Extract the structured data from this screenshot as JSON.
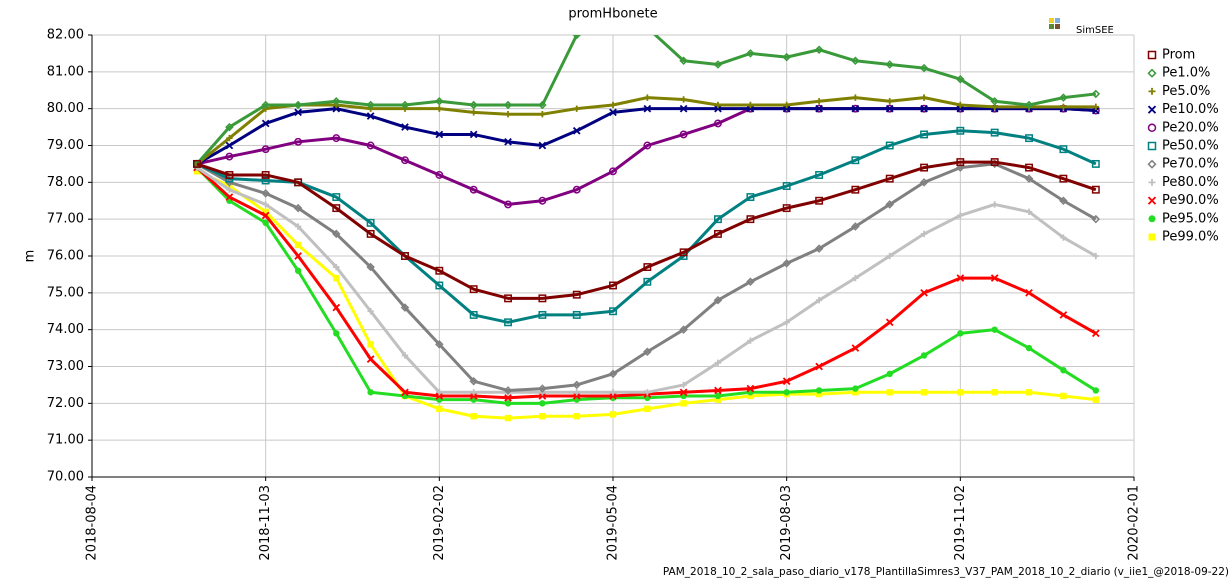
{
  "chart_data": {
    "type": "line",
    "title": "promHbonete",
    "y_label": "m",
    "logo_text": "SimSEE",
    "footer": "PAM_2018_10_2_sala_paso_diario_v178_PlantillaSimres3_V37_PAM_2018_10_2_diario (v_iie1_@2018-09-22)",
    "grid": true,
    "legend": "right",
    "xlim": [
      "2018-08-04",
      "2020-02-01"
    ],
    "xticks": [
      "2018-08-04",
      "2018-11-03",
      "2019-02-02",
      "2019-05-04",
      "2019-08-03",
      "2019-11-02",
      "2020-02-01"
    ],
    "ylim": [
      70,
      82
    ],
    "yticks": [
      {
        "value": 70,
        "label": "70.00"
      },
      {
        "value": 71,
        "label": "71.00"
      },
      {
        "value": 72,
        "label": "72.00"
      },
      {
        "value": 73,
        "label": "73.00"
      },
      {
        "value": 74,
        "label": "74.00"
      },
      {
        "value": 75,
        "label": "75.00"
      },
      {
        "value": 76,
        "label": "76.00"
      },
      {
        "value": 77,
        "label": "77.00"
      },
      {
        "value": 78,
        "label": "78.00"
      },
      {
        "value": 79,
        "label": "79.00"
      },
      {
        "value": 80,
        "label": "80.00"
      },
      {
        "value": 81,
        "label": "81.00"
      },
      {
        "value": 82,
        "label": "82.00"
      }
    ],
    "x": [
      "2018-09-28",
      "2018-10-15",
      "2018-11-03",
      "2018-11-20",
      "2018-12-10",
      "2018-12-28",
      "2019-01-15",
      "2019-02-02",
      "2019-02-20",
      "2019-03-10",
      "2019-03-28",
      "2019-04-15",
      "2019-05-04",
      "2019-05-22",
      "2019-06-10",
      "2019-06-28",
      "2019-07-15",
      "2019-08-03",
      "2019-08-20",
      "2019-09-08",
      "2019-09-26",
      "2019-10-14",
      "2019-11-02",
      "2019-11-20",
      "2019-12-08",
      "2019-12-26",
      "2020-01-12"
    ],
    "series": [
      {
        "name": "Prom",
        "color": "#800000",
        "marker": "square",
        "values": [
          78.5,
          78.2,
          78.2,
          78.0,
          77.3,
          76.6,
          76.0,
          75.6,
          75.1,
          74.85,
          74.85,
          74.95,
          75.2,
          75.7,
          76.1,
          76.6,
          77.0,
          77.3,
          77.5,
          77.8,
          78.1,
          78.4,
          78.55,
          78.55,
          78.4,
          78.1,
          77.8
        ]
      },
      {
        "name": "Pe1.0%",
        "color": "#3a9a3a",
        "marker": "diamond",
        "values": [
          78.5,
          79.5,
          80.1,
          80.1,
          80.2,
          80.1,
          80.1,
          80.2,
          80.1,
          80.1,
          80.1,
          82.0,
          82.4,
          82.2,
          81.3,
          81.2,
          81.5,
          81.4,
          81.6,
          81.3,
          81.2,
          81.1,
          80.8,
          80.2,
          80.1,
          80.3,
          80.4
        ]
      },
      {
        "name": "Pe5.0%",
        "color": "#808000",
        "marker": "plus",
        "values": [
          78.5,
          79.2,
          80.0,
          80.1,
          80.1,
          80.0,
          80.0,
          80.0,
          79.9,
          79.85,
          79.85,
          80.0,
          80.1,
          80.3,
          80.25,
          80.1,
          80.1,
          80.1,
          80.2,
          80.3,
          80.2,
          80.3,
          80.1,
          80.05,
          80.05,
          80.05,
          80.05
        ]
      },
      {
        "name": "Pe10.0%",
        "color": "#000080",
        "marker": "cross",
        "values": [
          78.5,
          79.0,
          79.6,
          79.9,
          80.0,
          79.8,
          79.5,
          79.3,
          79.3,
          79.1,
          79.0,
          79.4,
          79.9,
          80.0,
          80.0,
          80.0,
          80.0,
          80.0,
          80.0,
          80.0,
          80.0,
          80.0,
          80.0,
          80.0,
          80.0,
          80.0,
          79.95
        ]
      },
      {
        "name": "Pe20.0%",
        "color": "#800080",
        "marker": "circle",
        "values": [
          78.5,
          78.7,
          78.9,
          79.1,
          79.2,
          79.0,
          78.6,
          78.2,
          77.8,
          77.4,
          77.5,
          77.8,
          78.3,
          79.0,
          79.3,
          79.6,
          80.0,
          80.0,
          80.0,
          80.0,
          80.0,
          80.0,
          80.0,
          80.0,
          80.0,
          80.0,
          79.95
        ]
      },
      {
        "name": "Pe50.0%",
        "color": "#008080",
        "marker": "square",
        "values": [
          78.5,
          78.1,
          78.05,
          78.0,
          77.6,
          76.9,
          76.0,
          75.2,
          74.4,
          74.2,
          74.4,
          74.4,
          74.5,
          75.3,
          76.0,
          77.0,
          77.6,
          77.9,
          78.2,
          78.6,
          79.0,
          79.3,
          79.4,
          79.35,
          79.2,
          78.9,
          78.5
        ]
      },
      {
        "name": "Pe70.0%",
        "color": "#808080",
        "marker": "diamond",
        "values": [
          78.5,
          78.0,
          77.7,
          77.3,
          76.6,
          75.7,
          74.6,
          73.6,
          72.6,
          72.35,
          72.4,
          72.5,
          72.8,
          73.4,
          74.0,
          74.8,
          75.3,
          75.8,
          76.2,
          76.8,
          77.4,
          78.0,
          78.4,
          78.5,
          78.1,
          77.5,
          77.0
        ]
      },
      {
        "name": "Pe80.0%",
        "color": "#c0c0c0",
        "marker": "plus",
        "values": [
          78.4,
          77.8,
          77.4,
          76.8,
          75.7,
          74.5,
          73.3,
          72.3,
          72.3,
          72.3,
          72.3,
          72.3,
          72.3,
          72.3,
          72.5,
          73.1,
          73.7,
          74.2,
          74.8,
          75.4,
          76.0,
          76.6,
          77.1,
          77.4,
          77.2,
          76.5,
          76.0
        ]
      },
      {
        "name": "Pe90.0%",
        "color": "#ff0000",
        "marker": "cross",
        "values": [
          78.4,
          77.6,
          77.1,
          76.0,
          74.6,
          73.2,
          72.3,
          72.2,
          72.2,
          72.15,
          72.2,
          72.2,
          72.2,
          72.25,
          72.3,
          72.35,
          72.4,
          72.6,
          73.0,
          73.5,
          74.2,
          75.0,
          75.4,
          75.4,
          75.0,
          74.4,
          73.9
        ]
      },
      {
        "name": "Pe95.0%",
        "color": "#22dd22",
        "marker": "dot",
        "values": [
          78.4,
          77.5,
          76.9,
          75.6,
          73.9,
          72.3,
          72.2,
          72.1,
          72.1,
          72.0,
          72.0,
          72.1,
          72.15,
          72.15,
          72.2,
          72.2,
          72.3,
          72.3,
          72.35,
          72.4,
          72.8,
          73.3,
          73.9,
          74.0,
          73.5,
          72.9,
          72.35
        ]
      },
      {
        "name": "Pe99.0%",
        "color": "#ffff00",
        "marker": "box",
        "values": [
          78.3,
          77.9,
          77.2,
          76.3,
          75.4,
          73.6,
          72.2,
          71.85,
          71.65,
          71.6,
          71.65,
          71.65,
          71.7,
          71.85,
          72.0,
          72.1,
          72.2,
          72.25,
          72.25,
          72.3,
          72.3,
          72.3,
          72.3,
          72.3,
          72.3,
          72.2,
          72.1
        ]
      }
    ]
  }
}
